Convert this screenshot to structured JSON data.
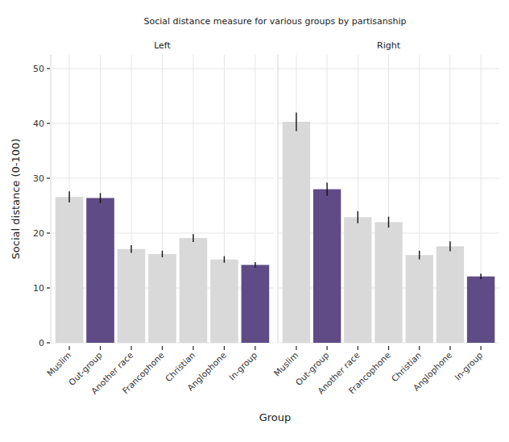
{
  "chart_data": [
    {
      "type": "bar",
      "title": "Social distance measure for various groups by partisanship",
      "subtitle": "Left",
      "y_label": "Social distance (0-100)",
      "x_label": "Group",
      "categories": [
        "Muslim",
        "Out-group",
        "Another race",
        "Francophone",
        "Christian",
        "Anglophone",
        "In-group"
      ],
      "values": [
        26.6,
        26.4,
        17.1,
        16.2,
        19.1,
        15.2,
        14.2
      ],
      "errors": [
        1.0,
        0.9,
        0.7,
        0.6,
        0.7,
        0.6,
        0.5
      ],
      "colors": [
        "#d9d9d9",
        "#5f4b85",
        "#d9d9d9",
        "#d9d9d9",
        "#d9d9d9",
        "#d9d9d9",
        "#5f4b85"
      ],
      "ylim": [
        0,
        52.5
      ],
      "yticks": [
        0,
        10,
        20,
        30,
        40,
        50
      ],
      "grid": true
    },
    {
      "type": "bar",
      "subtitle": "Right",
      "categories": [
        "Muslim",
        "Out-group",
        "Another race",
        "Francophone",
        "Christian",
        "Anglophone",
        "In-group"
      ],
      "values": [
        40.3,
        28.0,
        22.9,
        22.0,
        16.0,
        17.6,
        12.1
      ],
      "errors": [
        1.7,
        1.2,
        1.1,
        1.0,
        0.8,
        0.9,
        0.5
      ],
      "colors": [
        "#d9d9d9",
        "#5f4b85",
        "#d9d9d9",
        "#d9d9d9",
        "#d9d9d9",
        "#d9d9d9",
        "#5f4b85"
      ],
      "ylim": [
        0,
        52.5
      ],
      "yticks": [
        0,
        10,
        20,
        30,
        40,
        50
      ],
      "grid": true
    }
  ]
}
